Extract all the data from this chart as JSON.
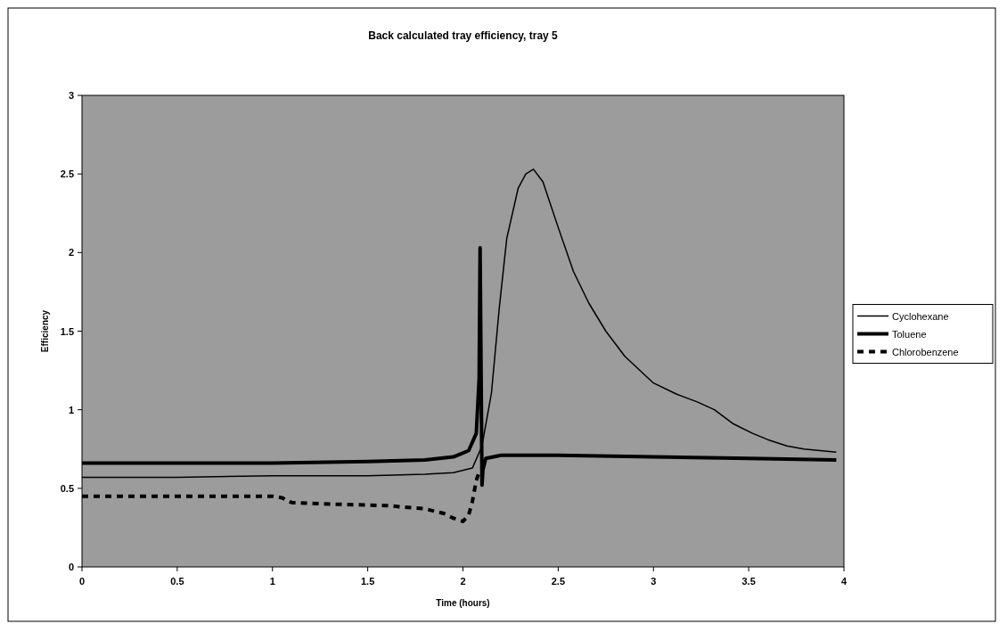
{
  "chart_data": {
    "type": "line",
    "title": "Back calculated tray efficiency, tray 5",
    "xlabel": "Time (hours)",
    "ylabel": "Efficiency",
    "xlim": [
      0,
      4
    ],
    "xticks": [
      0,
      0.5,
      1,
      1.5,
      2,
      2.5,
      3,
      3.5,
      4
    ],
    "ylim": [
      0,
      3
    ],
    "yticks": [
      0,
      0.5,
      1,
      1.5,
      2,
      2.5,
      3
    ],
    "legend": "right",
    "grid": false,
    "marker": "none",
    "series": [
      {
        "name": "Cyclohexane",
        "color": "#000000",
        "line_style": "solid",
        "x": [
          0,
          0.5,
          1,
          1.5,
          1.8,
          1.95,
          2.05,
          2.1,
          2.15,
          2.19,
          2.23,
          2.29,
          2.33,
          2.37,
          2.42,
          2.5,
          2.58,
          2.66,
          2.75,
          2.85,
          3,
          3.12,
          3.23,
          3.32,
          3.42,
          3.52,
          3.6,
          3.7,
          3.79,
          3.96
        ],
        "values": [
          0.57,
          0.57,
          0.58,
          0.58,
          0.59,
          0.6,
          0.63,
          0.77,
          1.11,
          1.64,
          2.09,
          2.41,
          2.5,
          2.53,
          2.45,
          2.16,
          1.88,
          1.68,
          1.5,
          1.34,
          1.17,
          1.1,
          1.05,
          1,
          0.91,
          0.85,
          0.81,
          0.77,
          0.75,
          0.73
        ]
      },
      {
        "name": "Toluene",
        "color": "#000000",
        "line_style": "solid",
        "x": [
          0,
          0.5,
          1,
          1.5,
          1.8,
          1.95,
          2.03,
          2.07,
          2.085,
          2.09,
          2.1,
          2.105,
          2.12,
          2.2,
          2.5,
          3,
          3.5,
          3.96
        ],
        "values": [
          0.66,
          0.66,
          0.66,
          0.67,
          0.68,
          0.7,
          0.74,
          0.85,
          1.2,
          2.03,
          0.52,
          0.62,
          0.69,
          0.71,
          0.71,
          0.7,
          0.69,
          0.68
        ]
      },
      {
        "name": "Chlorobenzene",
        "color": "#000000",
        "line_style": "dashed",
        "x": [
          0,
          0.5,
          1,
          1.05,
          1.1,
          1.3,
          1.6,
          1.8,
          1.9,
          1.95,
          2.0,
          2.03,
          2.05,
          2.07,
          2.09
        ],
        "values": [
          0.45,
          0.45,
          0.45,
          0.44,
          0.41,
          0.4,
          0.39,
          0.37,
          0.34,
          0.31,
          0.29,
          0.33,
          0.42,
          0.55,
          0.62
        ]
      }
    ]
  }
}
